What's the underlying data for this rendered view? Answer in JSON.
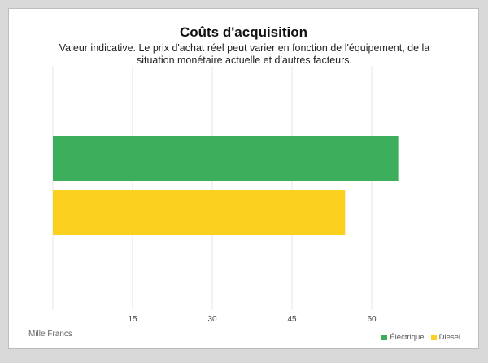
{
  "chart_data": {
    "type": "bar",
    "orientation": "horizontal",
    "title": "Coûts d'acquisition",
    "subtitle_lines": [
      "Valeur indicative. Le prix d'achat réel peut varier en fonction de l'équipement, de la",
      "situation monétaire actuelle et d'autres facteurs."
    ],
    "xlabel": "Mille Francs",
    "ylabel": "",
    "xlim": [
      0,
      75
    ],
    "xticks": [
      15,
      30,
      45,
      60
    ],
    "grid": true,
    "legend_position": "bottom-right",
    "series": [
      {
        "name": "Électrique",
        "value": 65,
        "color": "#3dae5b"
      },
      {
        "name": "Diesel",
        "value": 55,
        "color": "#fcd01f"
      }
    ]
  }
}
